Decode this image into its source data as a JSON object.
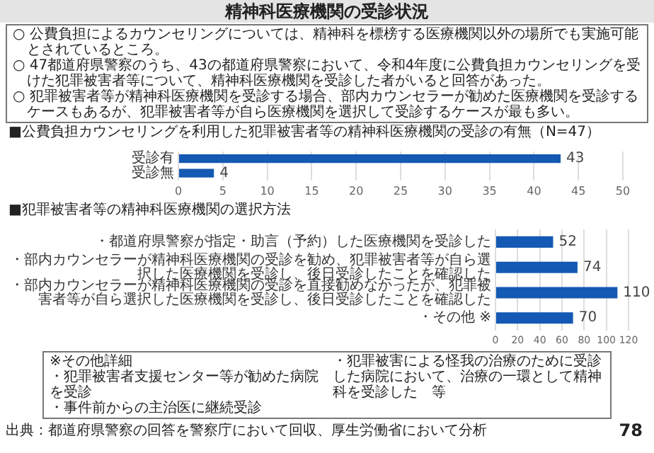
{
  "chart_data": [
    {
      "type": "other",
      "title": "精神科医療機関の受診状況",
      "annotations": [
        "○ 公費負担によるカウンセリングについては、精神科を標榜する医療機関以外の場所でも実施可能とされているところ。",
        "○ 47都道府県警察のうち、43の都道府県警察において、令和4年度に公費負担カウンセリングを受けた犯罪被害者等について、精神科医療機関を受診した者がいると回答があった。",
        "○ 犯罪被害者等が精神科医療機関を受診する場合、部内カウンセラーが勧めた医療機関を受診するケースもあるが、犯罪被害者等が自ら医療機関を選択して受診するケースが最も多い。"
      ]
    },
    {
      "type": "bar",
      "orientation": "horizontal",
      "title": "■公費負担カウンセリングを利用した犯罪被害者等の精神科医療機関の受診の有無（N=47）",
      "categories": [
        "受診有",
        "受診無"
      ],
      "values": [
        43,
        4
      ],
      "color": "#1459b3",
      "xlim": [
        0,
        50
      ],
      "xticks": [
        0,
        5,
        10,
        15,
        20,
        25,
        30,
        35,
        40,
        45,
        50
      ],
      "grid": "x",
      "data_labels": true
    },
    {
      "type": "bar",
      "orientation": "horizontal",
      "title": "■犯罪被害者等の精神科医療機関の選択方法",
      "categories": [
        "・都道府県警察が指定・助言（予約）した医療機関を受診した",
        "・部内カウンセラーが精神科医療機関の受診を勧め、犯罪被害者等が自ら選択した医療機関を受診し、後日受診したことを確認した",
        "・部内カウンセラーが精神科医療機関の受診を直接勧めなかったが、犯罪被害者等が自ら選択した医療機関を受診し、後日受診したことを確認した",
        "・その他 ※"
      ],
      "values": [
        52,
        74,
        110,
        70
      ],
      "color": "#1459b3",
      "xlim": [
        0,
        120
      ],
      "xticks": [
        0,
        20,
        40,
        60,
        80,
        100,
        120
      ],
      "grid": "x",
      "data_labels": true,
      "annotations": [
        "※その他詳細",
        "・犯罪被害者支援センター等が勧めた病院を受診",
        "・事件前からの主治医に継続受診",
        "・犯罪被害による怪我の治療のために受診した病院において、治療の一環として精神科を受診した　等"
      ]
    },
    {
      "type": "other",
      "annotations": [
        "出典：都道府県警察の回答を警察庁において回収、厚生労働省において分析",
        "78"
      ]
    }
  ]
}
